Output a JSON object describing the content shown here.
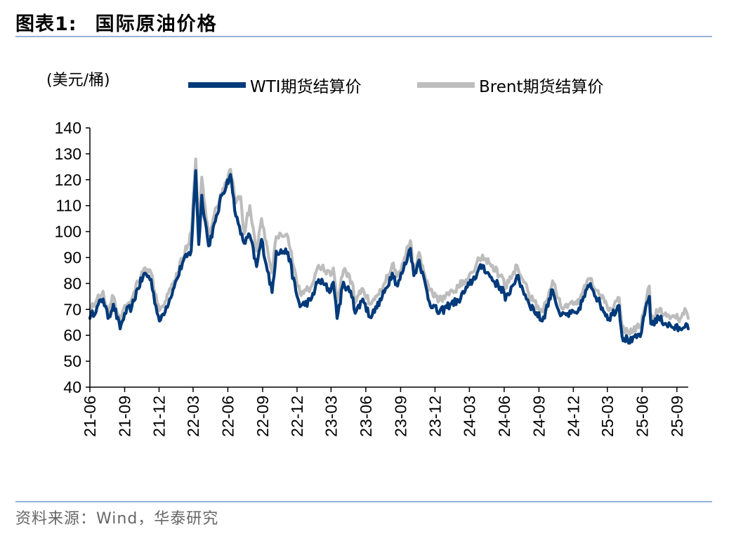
{
  "header": {
    "figure_number": "图表1:",
    "title": "国际原油价格"
  },
  "footer": {
    "source": "资料来源：Wind，华泰研究"
  },
  "colors": {
    "wti": "#003A7A",
    "brent": "#BDBDBD",
    "rule": "#95B3D7"
  },
  "chart_data": {
    "type": "line",
    "title": "国际原油价格",
    "ylabel": "(美元/桶)",
    "ylim": [
      40,
      140
    ],
    "yticks": [
      40,
      50,
      60,
      70,
      80,
      90,
      100,
      110,
      120,
      130,
      140
    ],
    "x_range": [
      "2021-06",
      "2025-10"
    ],
    "xtick_labels": [
      "21-06",
      "21-09",
      "21-12",
      "22-03",
      "22-06",
      "22-09",
      "22-12",
      "23-03",
      "23-06",
      "23-09",
      "23-12",
      "24-03",
      "24-06",
      "24-09",
      "24-12",
      "25-03",
      "25-06",
      "25-09"
    ],
    "grid": false,
    "legend": "top",
    "series": [
      {
        "name": "WTI期货结算价",
        "color": "#003A7A",
        "points": [
          [
            "2021-06-01",
            66.5
          ],
          [
            "2021-06-20",
            71
          ],
          [
            "2021-07-06",
            74
          ],
          [
            "2021-07-19",
            66.5
          ],
          [
            "2021-08-02",
            72
          ],
          [
            "2021-08-20",
            62.5
          ],
          [
            "2021-09-01",
            68.5
          ],
          [
            "2021-09-20",
            71
          ],
          [
            "2021-10-05",
            78
          ],
          [
            "2021-10-25",
            84
          ],
          [
            "2021-11-10",
            81.5
          ],
          [
            "2021-11-26",
            68.5
          ],
          [
            "2021-12-02",
            65.5
          ],
          [
            "2021-12-20",
            71
          ],
          [
            "2022-01-10",
            78.5
          ],
          [
            "2022-02-01",
            88
          ],
          [
            "2022-02-24",
            92.5
          ],
          [
            "2022-03-08",
            123.5
          ],
          [
            "2022-03-16",
            95
          ],
          [
            "2022-03-24",
            114
          ],
          [
            "2022-04-11",
            94.5
          ],
          [
            "2022-04-29",
            104
          ],
          [
            "2022-05-16",
            114
          ],
          [
            "2022-06-08",
            122
          ],
          [
            "2022-06-22",
            106
          ],
          [
            "2022-07-05",
            99
          ],
          [
            "2022-07-14",
            95.5
          ],
          [
            "2022-07-29",
            98.5
          ],
          [
            "2022-08-16",
            86.5
          ],
          [
            "2022-08-29",
            97
          ],
          [
            "2022-09-26",
            76.5
          ],
          [
            "2022-10-07",
            92.5
          ],
          [
            "2022-11-07",
            92
          ],
          [
            "2022-11-28",
            77
          ],
          [
            "2022-12-09",
            71
          ],
          [
            "2023-01-06",
            73.5
          ],
          [
            "2023-01-27",
            81.5
          ],
          [
            "2023-02-28",
            77
          ],
          [
            "2023-03-07",
            80.5
          ],
          [
            "2023-03-17",
            66.5
          ],
          [
            "2023-04-03",
            80.5
          ],
          [
            "2023-04-28",
            74.5
          ],
          [
            "2023-05-04",
            68.5
          ],
          [
            "2023-05-24",
            74
          ],
          [
            "2023-06-12",
            67
          ],
          [
            "2023-06-30",
            70.5
          ],
          [
            "2023-07-20",
            76.5
          ],
          [
            "2023-08-10",
            84
          ],
          [
            "2023-08-24",
            79
          ],
          [
            "2023-09-27",
            93.5
          ],
          [
            "2023-10-06",
            83
          ],
          [
            "2023-10-20",
            89
          ],
          [
            "2023-11-16",
            73
          ],
          [
            "2023-12-12",
            68.5
          ],
          [
            "2024-01-10",
            72
          ],
          [
            "2024-02-01",
            73.5
          ],
          [
            "2024-03-01",
            79.5
          ],
          [
            "2024-04-05",
            87
          ],
          [
            "2024-04-25",
            82.5
          ],
          [
            "2024-05-31",
            77
          ],
          [
            "2024-06-04",
            73.5
          ],
          [
            "2024-07-05",
            83
          ],
          [
            "2024-08-05",
            72.5
          ],
          [
            "2024-09-10",
            65.5
          ],
          [
            "2024-10-07",
            77.5
          ],
          [
            "2024-10-28",
            67.5
          ],
          [
            "2024-12-10",
            68.5
          ],
          [
            "2025-01-15",
            80
          ],
          [
            "2025-02-10",
            72
          ],
          [
            "2025-03-05",
            66.5
          ],
          [
            "2025-04-01",
            71.5
          ],
          [
            "2025-04-09",
            59.5
          ],
          [
            "2025-05-05",
            57.5
          ],
          [
            "2025-05-30",
            61
          ],
          [
            "2025-06-13",
            72.5
          ],
          [
            "2025-06-20",
            75
          ],
          [
            "2025-06-24",
            64.5
          ],
          [
            "2025-07-15",
            66.5
          ],
          [
            "2025-08-20",
            63
          ],
          [
            "2025-09-10",
            62.5
          ],
          [
            "2025-09-25",
            64.5
          ],
          [
            "2025-10-01",
            62.5
          ]
        ]
      },
      {
        "name": "Brent期货结算价",
        "color": "#BDBDBD",
        "points": [
          [
            "2021-06-01",
            70
          ],
          [
            "2021-06-20",
            74
          ],
          [
            "2021-07-06",
            77
          ],
          [
            "2021-07-19",
            69
          ],
          [
            "2021-08-02",
            75
          ],
          [
            "2021-08-20",
            65.5
          ],
          [
            "2021-09-01",
            71.5
          ],
          [
            "2021-09-20",
            74
          ],
          [
            "2021-10-05",
            81
          ],
          [
            "2021-10-25",
            86
          ],
          [
            "2021-11-10",
            84
          ],
          [
            "2021-11-26",
            72.5
          ],
          [
            "2021-12-02",
            69.5
          ],
          [
            "2021-12-20",
            73.5
          ],
          [
            "2022-01-10",
            81
          ],
          [
            "2022-02-01",
            89.5
          ],
          [
            "2022-02-24",
            99
          ],
          [
            "2022-03-08",
            128
          ],
          [
            "2022-03-16",
            98
          ],
          [
            "2022-03-24",
            121
          ],
          [
            "2022-04-11",
            98.5
          ],
          [
            "2022-04-29",
            109
          ],
          [
            "2022-05-16",
            114
          ],
          [
            "2022-06-08",
            124
          ],
          [
            "2022-06-22",
            111
          ],
          [
            "2022-07-05",
            113.5
          ],
          [
            "2022-07-14",
            99
          ],
          [
            "2022-07-29",
            110
          ],
          [
            "2022-08-16",
            92.5
          ],
          [
            "2022-08-29",
            105
          ],
          [
            "2022-09-26",
            84
          ],
          [
            "2022-10-07",
            98
          ],
          [
            "2022-11-07",
            98
          ],
          [
            "2022-11-28",
            83
          ],
          [
            "2022-12-09",
            76
          ],
          [
            "2023-01-06",
            78.5
          ],
          [
            "2023-01-27",
            87
          ],
          [
            "2023-02-28",
            83
          ],
          [
            "2023-03-07",
            86
          ],
          [
            "2023-03-17",
            73
          ],
          [
            "2023-04-03",
            85
          ],
          [
            "2023-04-28",
            79.5
          ],
          [
            "2023-05-04",
            72.5
          ],
          [
            "2023-05-24",
            78
          ],
          [
            "2023-06-12",
            72
          ],
          [
            "2023-06-30",
            75
          ],
          [
            "2023-07-20",
            80
          ],
          [
            "2023-08-10",
            87.5
          ],
          [
            "2023-08-24",
            83
          ],
          [
            "2023-09-27",
            96.5
          ],
          [
            "2023-10-06",
            84.5
          ],
          [
            "2023-10-20",
            92
          ],
          [
            "2023-11-16",
            77.5
          ],
          [
            "2023-12-12",
            73.5
          ],
          [
            "2024-01-10",
            77
          ],
          [
            "2024-02-01",
            78.5
          ],
          [
            "2024-03-01",
            83.5
          ],
          [
            "2024-04-05",
            91
          ],
          [
            "2024-04-25",
            87.5
          ],
          [
            "2024-05-31",
            81.5
          ],
          [
            "2024-06-04",
            78
          ],
          [
            "2024-07-05",
            87
          ],
          [
            "2024-08-05",
            76
          ],
          [
            "2024-09-10",
            69
          ],
          [
            "2024-10-07",
            81
          ],
          [
            "2024-10-28",
            71.5
          ],
          [
            "2024-12-10",
            72
          ],
          [
            "2025-01-15",
            82
          ],
          [
            "2025-02-10",
            75.5
          ],
          [
            "2025-03-05",
            69.5
          ],
          [
            "2025-04-01",
            74.5
          ],
          [
            "2025-04-09",
            63
          ],
          [
            "2025-05-05",
            61
          ],
          [
            "2025-05-30",
            64.5
          ],
          [
            "2025-06-13",
            74.5
          ],
          [
            "2025-06-20",
            79
          ],
          [
            "2025-06-24",
            67
          ],
          [
            "2025-07-15",
            69
          ],
          [
            "2025-08-20",
            67.5
          ],
          [
            "2025-09-10",
            66.5
          ],
          [
            "2025-09-25",
            69.5
          ],
          [
            "2025-10-01",
            66.5
          ]
        ]
      }
    ]
  }
}
